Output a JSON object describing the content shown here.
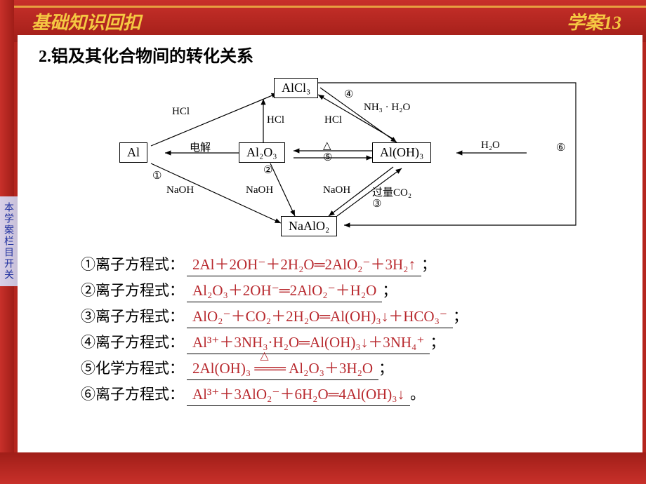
{
  "header": {
    "left": "基础知识回扣",
    "right": "学案13"
  },
  "section_title": "2.铝及其化合物间的转化关系",
  "side_tab": "本学案栏目开关",
  "diagram": {
    "nodes": {
      "Al": "Al",
      "AlCl3": "AlCl₃",
      "Al2O3": "Al₂O₃",
      "AlOH3": "Al(OH)₃",
      "NaAlO2": "NaAlO₂"
    },
    "edge_labels": {
      "HCl_1": "HCl",
      "HCl_2": "HCl",
      "HCl_3": "HCl",
      "dianjie": "电解",
      "NaOH_1": "NaOH",
      "NaOH_2": "NaOH",
      "NaOH_3": "NaOH",
      "NH3H2O": "NH₃ · H₂O",
      "H2O": "H₂O",
      "guoliang_CO2": "过量CO₂",
      "delta": "△",
      "n1": "①",
      "n2": "②",
      "n3": "③",
      "n4": "④",
      "n5": "⑤",
      "n6": "⑥"
    }
  },
  "equations": [
    {
      "label": "①离子方程式：",
      "value": "2Al＋2OH⁻＋2H₂O═2AlO₂⁻＋3H₂↑",
      "end": "；"
    },
    {
      "label": "②离子方程式：",
      "value": "Al₂O₃＋2OH⁻═2AlO₂⁻＋H₂O",
      "end": "；"
    },
    {
      "label": "③离子方程式：",
      "value": "AlO₂⁻＋CO₂＋2H₂O═Al(OH)₃↓＋HCO₃⁻",
      "end": "；"
    },
    {
      "label": "④离子方程式：",
      "value": "Al³⁺＋3NH₃·H₂O═Al(OH)₃↓＋3NH₄⁺",
      "end": "；"
    },
    {
      "label": "⑤化学方程式：",
      "value_html": "2Al(OH)₃ <span style='position:relative;'>═══<span style='position:absolute;top:-16px;left:8px;font-size:16px;'>△</span></span> Al₂O₃＋3H₂O",
      "end": "；"
    },
    {
      "label": "⑥离子方程式：",
      "value": "Al³⁺＋3AlO₂⁻＋6H₂O═4Al(OH)₃↓",
      "end": "。"
    }
  ],
  "colors": {
    "background": "#b5261e",
    "accent": "#f5c842",
    "equation_text": "#b8292e",
    "content_bg": "#ffffff"
  }
}
